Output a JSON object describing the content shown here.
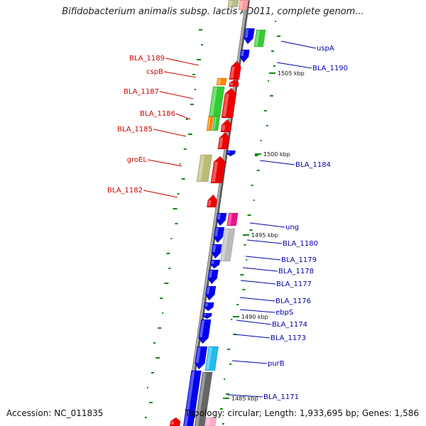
{
  "title": "Bifidobacterium animalis subsp. lactis AD011, complete genom...",
  "footer": {
    "accession": "Accession: NC_011835",
    "topology": "Topology: circular; Length: 1,933,695 bp; Genes: 1,586"
  },
  "colors": {
    "reverse_gene": "#0000ee",
    "forward_gene": "#ee0000",
    "forward_label": "#cc0000",
    "reverse_label": "#0000aa",
    "backbone": "#999999",
    "gc_mark": "#118811"
  },
  "left_labels": [
    "BLA_1189",
    "cspB",
    "BLA_1187",
    "BLA_1186",
    "BLA_1185",
    "groEL",
    "BLA_1182"
  ],
  "right_labels": [
    "uspA",
    "BLA_1190",
    "BLA_1184",
    "ung",
    "BLA_1180",
    "BLA_1179",
    "BLA_1178",
    "BLA_1177",
    "BLA_1176",
    "ebpS",
    "BLA_1174",
    "BLA_1173",
    "purB",
    "BLA_1171"
  ],
  "scale_marks": [
    "1505 kbp",
    "1500 kbp",
    "1495 kbp",
    "1490 kbp",
    "1485 kbp"
  ]
}
